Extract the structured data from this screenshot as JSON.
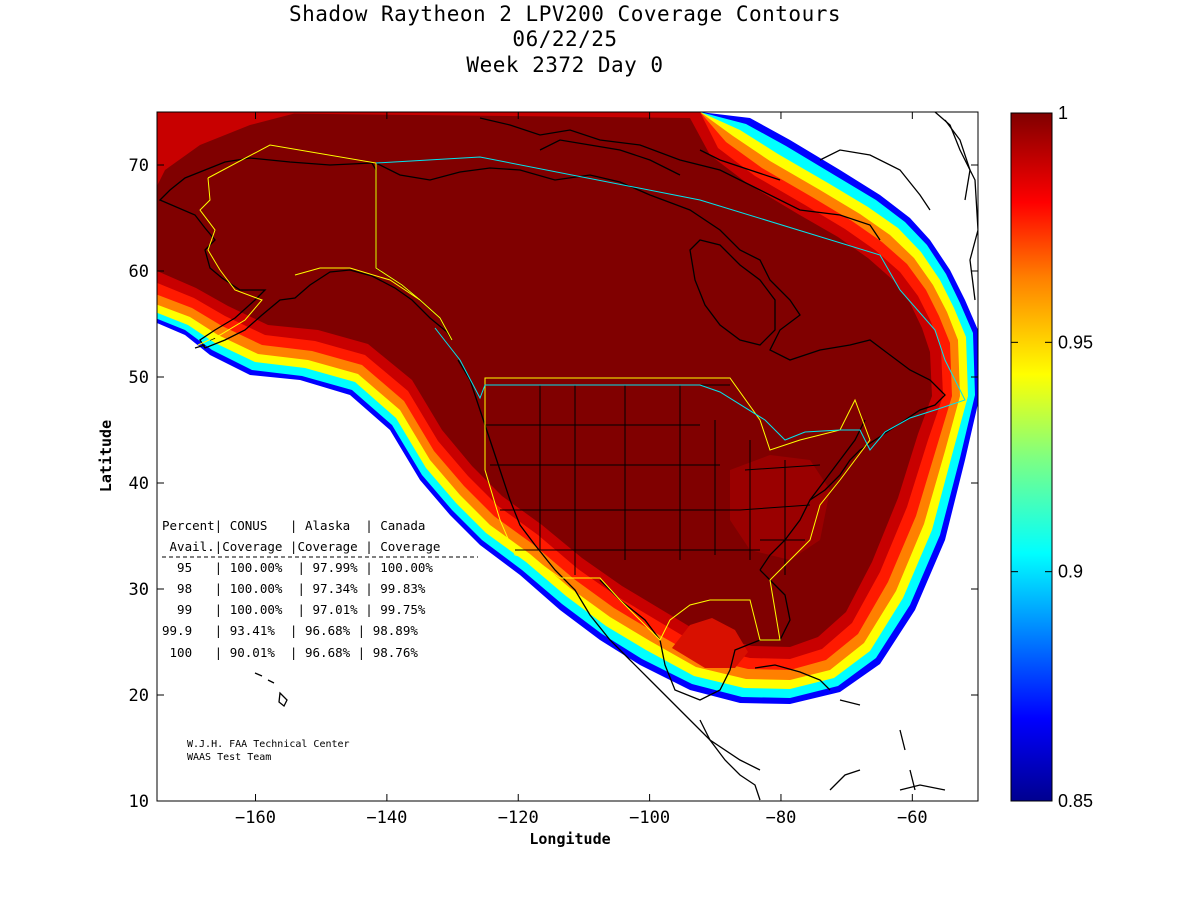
{
  "title": {
    "line1": "Shadow Raytheon 2 LPV200 Coverage Contours",
    "line2": "06/22/25",
    "line3": "Week 2372 Day 0"
  },
  "axes": {
    "xlabel": "Longitude",
    "ylabel": "Latitude",
    "xlim": [
      -175,
      -50
    ],
    "ylim": [
      10,
      75
    ],
    "xticks": [
      -160,
      -140,
      -120,
      -100,
      -80,
      -60
    ],
    "yticks": [
      10,
      20,
      30,
      40,
      50,
      60,
      70
    ]
  },
  "colorbar": {
    "range": [
      0.85,
      1
    ],
    "ticks": [
      {
        "value": 1,
        "label": "1"
      },
      {
        "value": 0.95,
        "label": "0.95"
      },
      {
        "value": 0.9,
        "label": "0.9"
      },
      {
        "value": 0.85,
        "label": "0.85"
      }
    ],
    "colors": [
      "#00008f",
      "#0000ff",
      "#0080ff",
      "#00ffff",
      "#80ff80",
      "#ffff00",
      "#ff8000",
      "#ff0000",
      "#800000"
    ]
  },
  "table": {
    "header1": "Percent| CONUS   | Alaska  | Canada",
    "header2": " Avail.|Coverage |Coverage | Coverage",
    "rows": [
      "  95   | 100.00%  | 97.99% | 100.00%",
      "  98   | 100.00%  | 97.34% | 99.83%",
      "  99   | 100.00%  | 97.01% | 99.75%",
      "99.9   | 93.41%  | 96.68% | 98.89%",
      " 100   | 90.01%  | 96.68% | 98.76%"
    ]
  },
  "credit": {
    "line1": "W.J.H. FAA Technical Center",
    "line2": "WAAS Test Team"
  },
  "colors": {
    "coverage_core": "#800000",
    "coverage_red": "#d40000",
    "border_yellow": "#ffff00",
    "border_cyan": "#00e5ee",
    "coastline": "#000000"
  }
}
